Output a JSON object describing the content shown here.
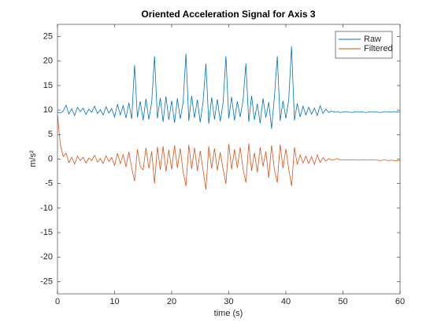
{
  "chart_data": {
    "type": "line",
    "title": "Oriented Acceleration Signal for Axis 3",
    "x_label": "time (s)",
    "y_label": "m/s²",
    "x": [
      0,
      0.5,
      1,
      1.5,
      2,
      2.5,
      3,
      3.5,
      4,
      4.5,
      5,
      5.5,
      6,
      6.5,
      7,
      7.5,
      8,
      8.5,
      9,
      9.5,
      10,
      10.5,
      11,
      11.5,
      12,
      12.5,
      13,
      13.5,
      14,
      14.5,
      15,
      15.5,
      16,
      16.5,
      17,
      17.5,
      18,
      18.5,
      19,
      19.5,
      20,
      20.5,
      21,
      21.5,
      22,
      22.5,
      23,
      23.5,
      24,
      24.5,
      25,
      25.5,
      26,
      26.5,
      27,
      27.5,
      28,
      28.5,
      29,
      29.5,
      30,
      30.5,
      31,
      31.5,
      32,
      32.5,
      33,
      33.5,
      34,
      34.5,
      35,
      35.5,
      36,
      36.5,
      37,
      37.5,
      38,
      38.5,
      39,
      39.5,
      40,
      40.5,
      41,
      41.5,
      42,
      42.5,
      43,
      43.5,
      44,
      44.5,
      45,
      45.5,
      46,
      46.5,
      47,
      47.5,
      48,
      48.5,
      49,
      49.5,
      50,
      50.5,
      51,
      51.5,
      52,
      52.5,
      53,
      53.5,
      54,
      54.5,
      55,
      55.5,
      56,
      56.5,
      57,
      57.5,
      58,
      58.5,
      59,
      59.5,
      60
    ],
    "series": [
      {
        "name": "Raw",
        "color": "#0072bd",
        "values": [
          9.5,
          9.4,
          9.8,
          11,
          9.2,
          10.3,
          8.9,
          10.6,
          9.7,
          10.4,
          9.1,
          10.2,
          9.6,
          10.8,
          9.3,
          10.1,
          9.0,
          10.7,
          9.4,
          10.3,
          8.6,
          11.2,
          9.0,
          10.9,
          8.4,
          11.5,
          8.2,
          19.2,
          8.5,
          11.8,
          7.9,
          12.3,
          8.1,
          11.6,
          21,
          8.3,
          12.5,
          7.6,
          12.8,
          8.0,
          11.9,
          7.4,
          12.4,
          8.2,
          11.5,
          21.5,
          7.8,
          12.9,
          8.4,
          12.1,
          7.5,
          11.7,
          19.5,
          7.2,
          12.6,
          8.1,
          12.2,
          7.7,
          11.4,
          21,
          8.3,
          12.7,
          7.9,
          11.8,
          8.6,
          12.0,
          19.5,
          7.6,
          12.9,
          8.0,
          11.3,
          7.3,
          12.4,
          8.5,
          11.6,
          6.2,
          12.8,
          21,
          7.8,
          11.9,
          8.3,
          12.1,
          23,
          7.9,
          11.4,
          8.6,
          10.8,
          9.0,
          10.6,
          9.2,
          10.4,
          8.9,
          10.9,
          9.3,
          10.2,
          9.5,
          9.8,
          9.6,
          9.7,
          9.5,
          9.6,
          9.7,
          9.6,
          9.5,
          9.6,
          9.7,
          9.6,
          9.6,
          9.5,
          9.6,
          9.7,
          9.6,
          9.6,
          9.5,
          9.6,
          9.7,
          9.6,
          9.6,
          9.7,
          9.6,
          9.6
        ]
      },
      {
        "name": "Filtered",
        "color": "#d95319",
        "values": [
          9,
          3,
          0.5,
          1.2,
          -0.7,
          0.4,
          -1,
          0.6,
          -0.3,
          0.4,
          -0.8,
          0.2,
          -0.3,
          0.8,
          -0.6,
          0.1,
          -0.9,
          0.7,
          -0.5,
          0.3,
          -1.3,
          1.2,
          -0.9,
          0.9,
          -1.6,
          1.5,
          -1.8,
          -4.5,
          2.0,
          -1.5,
          -2.2,
          2.3,
          -1.9,
          1.6,
          -5,
          2.5,
          -2.2,
          2.6,
          -2.5,
          1.9,
          -2.1,
          2.8,
          -1.8,
          2.2,
          -2.6,
          -5.5,
          2.9,
          -2.0,
          2.3,
          -2.4,
          1.7,
          -2.3,
          -6.2,
          2.6,
          -1.9,
          2.2,
          -2.3,
          1.4,
          -2.0,
          -5,
          3.1,
          -2.1,
          2.0,
          -1.8,
          2.4,
          -2.0,
          -4.8,
          3.2,
          -2.4,
          1.3,
          -2.7,
          2.4,
          -1.5,
          1.6,
          -3.8,
          2.8,
          -2.2,
          -4.8,
          3.0,
          -1.9,
          2.1,
          -2.0,
          -5.5,
          2.4,
          -1.1,
          0.9,
          -0.8,
          0.6,
          -0.9,
          0.5,
          -1.1,
          0.9,
          -0.7,
          0.3,
          -0.4,
          0.1,
          -0.2,
          -0.1,
          0.1,
          -0.2,
          -0.1,
          -0.2,
          -0.1,
          -0.2,
          -0.1,
          -0.2,
          -0.2,
          -0.1,
          -0.2,
          -0.2,
          -0.1,
          -0.2,
          -0.2,
          -0.3,
          -0.2,
          -0.2,
          -0.3,
          -0.2,
          -0.3,
          -0.3,
          -0.3
        ]
      }
    ],
    "xlim": [
      0,
      60
    ],
    "xticks": [
      0,
      10,
      20,
      30,
      40,
      50,
      60
    ],
    "ylim": [
      -27.5,
      27.5
    ],
    "yticks": [
      -25,
      -20,
      -15,
      -10,
      -5,
      0,
      5,
      10,
      15,
      20,
      25
    ],
    "legend": "northeast"
  }
}
